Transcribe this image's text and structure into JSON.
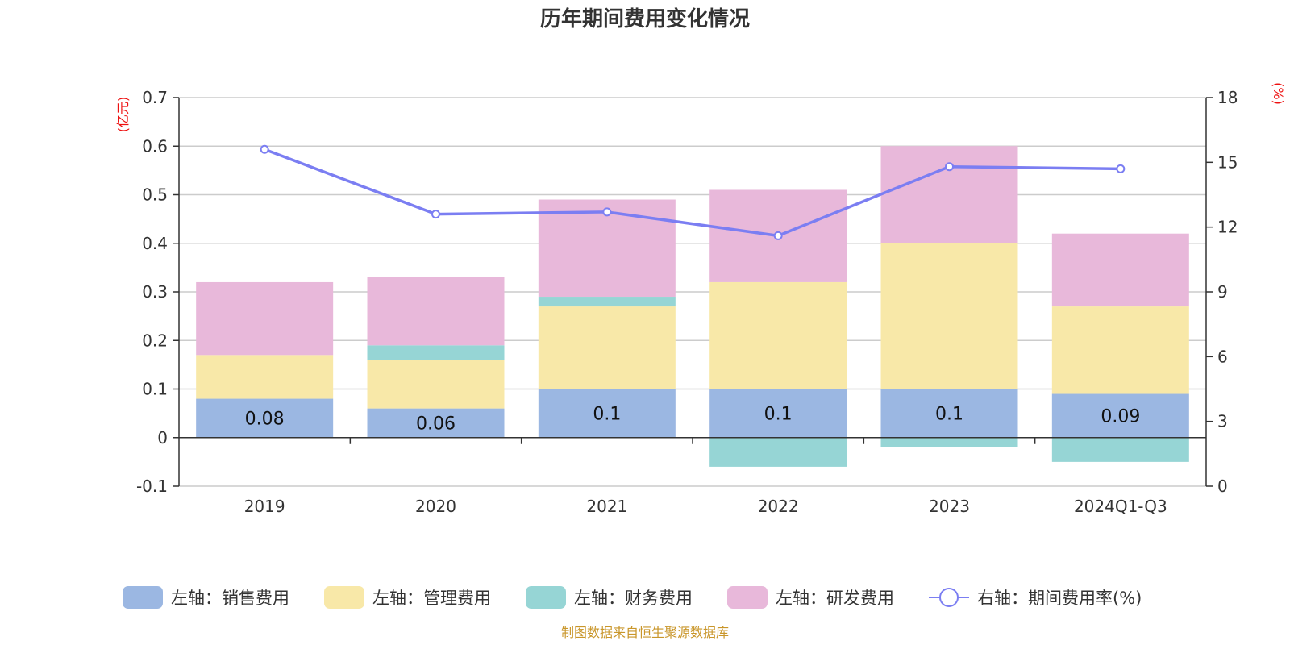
{
  "chart_data": {
    "type": "bar",
    "stacked": true,
    "title": "历年期间费用变化情况",
    "categories": [
      "2019",
      "2020",
      "2021",
      "2022",
      "2023",
      "2024Q1-Q3"
    ],
    "left_axis": {
      "unit": "(亿元)",
      "ylim": [
        -0.1,
        0.7
      ],
      "ticks": [
        "-0.1",
        "0",
        "0.1",
        "0.2",
        "0.3",
        "0.4",
        "0.5",
        "0.6",
        "0.7"
      ]
    },
    "right_axis": {
      "unit": "(%)",
      "ylim": [
        0,
        18
      ],
      "ticks": [
        "0",
        "3",
        "6",
        "9",
        "12",
        "15",
        "18"
      ]
    },
    "grid": true,
    "legend_position": "bottom",
    "series": [
      {
        "name": "左轴：销售费用",
        "type": "bar",
        "axis": "left",
        "color": "#9bb7e2",
        "values": [
          0.08,
          0.06,
          0.1,
          0.1,
          0.1,
          0.09
        ],
        "labels": [
          "0.08",
          "0.06",
          "0.1",
          "0.1",
          "0.1",
          "0.09"
        ]
      },
      {
        "name": "左轴：管理费用",
        "type": "bar",
        "axis": "left",
        "color": "#f8e8a8",
        "values": [
          0.09,
          0.1,
          0.17,
          0.22,
          0.3,
          0.18
        ]
      },
      {
        "name": "左轴：财务费用",
        "type": "bar",
        "axis": "left",
        "color": "#96d5d5",
        "values": [
          0.0,
          0.03,
          0.02,
          -0.06,
          -0.02,
          -0.05
        ]
      },
      {
        "name": "左轴：研发费用",
        "type": "bar",
        "axis": "left",
        "color": "#e8b8da",
        "values": [
          0.15,
          0.14,
          0.2,
          0.19,
          0.2,
          0.15
        ]
      },
      {
        "name": "右轴：期间费用率(%)",
        "type": "line",
        "axis": "right",
        "color": "#7b7ef2",
        "values": [
          15.6,
          12.6,
          12.7,
          11.6,
          14.8,
          14.7
        ]
      }
    ]
  },
  "footer": {
    "source": "制图数据来自恒生聚源数据库"
  }
}
